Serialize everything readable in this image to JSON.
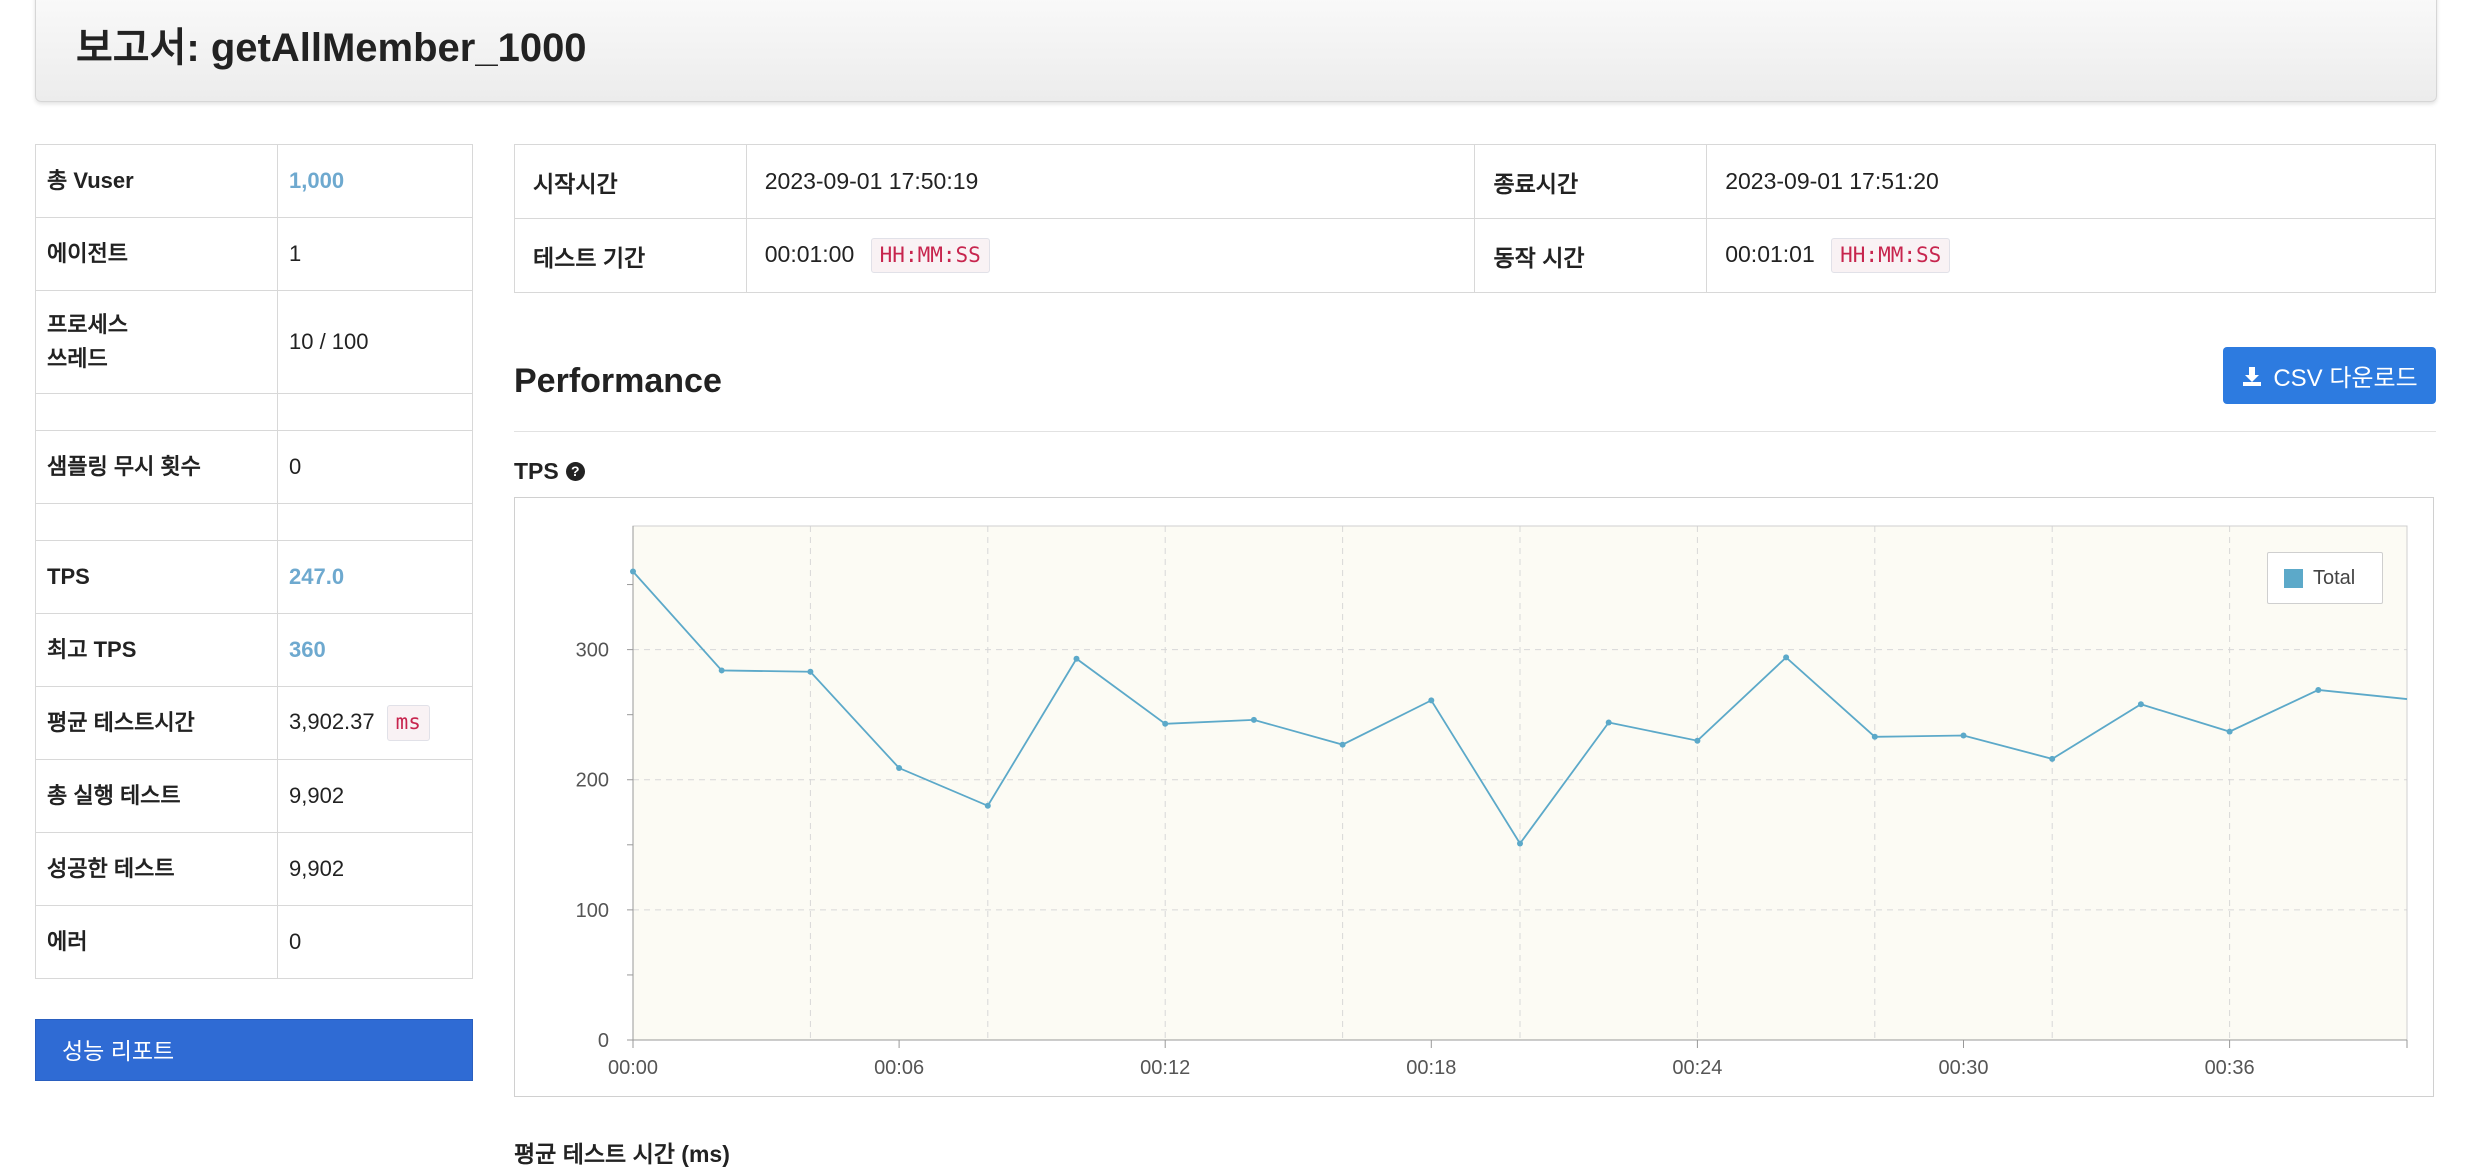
{
  "report_title": "보고서: getAllMember_1000",
  "summary": [
    {
      "label": "총 Vuser",
      "value": "1,000",
      "highlight": true
    },
    {
      "label": "에이전트",
      "value": "1"
    },
    {
      "label": "프로세스\n쓰레드",
      "value": "10 / 100"
    },
    {
      "label": "",
      "value": ""
    },
    {
      "label": "샘플링 무시 횟수",
      "value": "0"
    },
    {
      "label": "",
      "value": ""
    },
    {
      "label": "TPS",
      "value": "247.0",
      "highlight": true
    },
    {
      "label": "최고 TPS",
      "value": "360",
      "highlight": true
    },
    {
      "label": "평균 테스트시간",
      "value": "3,902.37",
      "unit": "ms"
    },
    {
      "label": "총 실행 테스트",
      "value": "9,902"
    },
    {
      "label": "성공한 테스트",
      "value": "9,902"
    },
    {
      "label": "에러",
      "value": "0"
    }
  ],
  "perf_report_button": "성능 리포트",
  "times": {
    "start_label": "시작시간",
    "start_value": "2023-09-01 17:50:19",
    "end_label": "종료시간",
    "end_value": "2023-09-01 17:51:20",
    "duration_label": "테스트 기간",
    "duration_value": "00:01:00",
    "run_label": "동작 시간",
    "run_value": "00:01:01",
    "format": "HH:MM:SS"
  },
  "section_title": "Performance",
  "csv_button": "CSV 다운로드",
  "tps_label": "TPS",
  "next_section_label": "평균 테스트 시간 (ms)",
  "colors": {
    "line": "#5ca9c9",
    "accent": "#2d7be0",
    "highlight": "#6ea9cf",
    "plot_bg": "#fcfbf4"
  },
  "chart_data": {
    "type": "line",
    "x": [
      "00:00",
      "00:02",
      "00:04",
      "00:06",
      "00:08",
      "00:10",
      "00:12",
      "00:14",
      "00:16",
      "00:18",
      "00:20",
      "00:22",
      "00:24",
      "00:26",
      "00:28",
      "00:30",
      "00:32",
      "00:34",
      "00:36",
      "00:38",
      "00:40"
    ],
    "x_tick_labels": [
      "00:00",
      "00:06",
      "00:12",
      "00:18",
      "00:24",
      "00:30",
      "00:36"
    ],
    "series": [
      {
        "name": "Total",
        "values": [
          360,
          284,
          283,
          209,
          180,
          293,
          243,
          246,
          227,
          261,
          151,
          244,
          230,
          294,
          233,
          234,
          216,
          258,
          237,
          269,
          262
        ]
      }
    ],
    "ylim": [
      0,
      395
    ],
    "y_ticks": [
      0,
      100,
      200,
      300
    ],
    "grid": true,
    "legend": "top-right",
    "title": "",
    "xlabel": "",
    "ylabel": ""
  }
}
